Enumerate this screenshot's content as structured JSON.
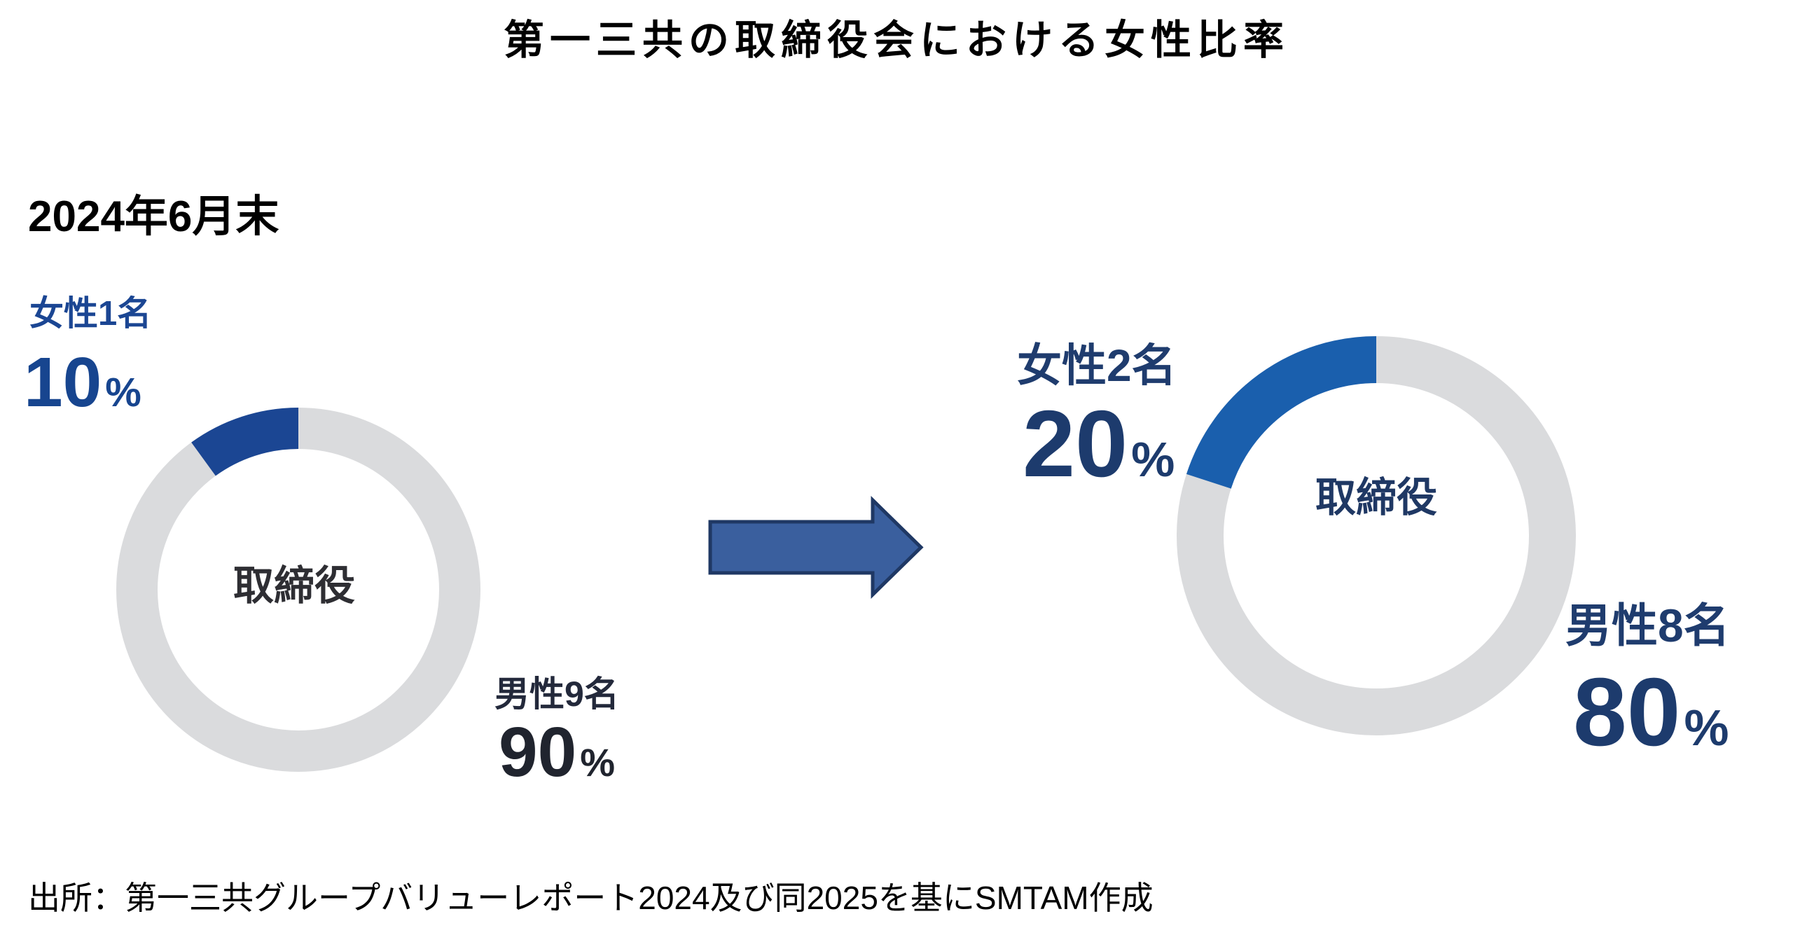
{
  "page": {
    "title": "第一三共の取締役会における女性比率",
    "period_label": "2024年6月末",
    "source": "出所：第一三共グループバリューレポート2024及び同2025を基にSMTAM作成"
  },
  "colors": {
    "female_slice_left": "#1B4693",
    "female_slice_right": "#1A5FAD",
    "male_ring_gray": "#DADBDD",
    "arrow_fill": "#3A5F9E",
    "arrow_border": "#1F3864"
  },
  "arrow": {
    "meaning": "change from 2024 to 2025"
  },
  "chart_data": [
    {
      "type": "pie",
      "variant": "donut",
      "period": "2024年6月末",
      "center_label": "取締役",
      "start_angle": "top",
      "direction": "clockwise",
      "legend_position": "none",
      "slices": [
        {
          "label": "女性1名",
          "pct": 10,
          "display": "10",
          "unit": "%",
          "color": "#1B4693"
        },
        {
          "label": "男性9名",
          "pct": 90,
          "display": "90",
          "unit": "%",
          "color": "#DADBDD"
        }
      ]
    },
    {
      "type": "pie",
      "variant": "donut",
      "center_label": "取締役",
      "start_angle": "top",
      "direction": "clockwise",
      "legend_position": "none",
      "slices": [
        {
          "label": "女性2名",
          "pct": 20,
          "display": "20",
          "unit": "%",
          "color": "#1A5FAD"
        },
        {
          "label": "男性8名",
          "pct": 80,
          "display": "80",
          "unit": "%",
          "color": "#DADBDD"
        }
      ]
    }
  ]
}
